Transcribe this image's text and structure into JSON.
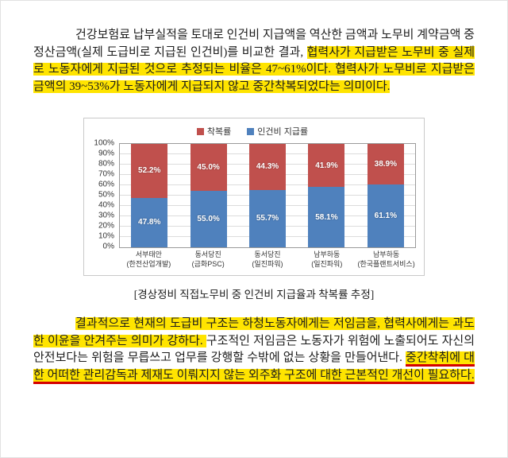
{
  "colors": {
    "highlight": "#ffe400",
    "underline": "#d40000"
  },
  "doc": {
    "paragraph1": [
      {
        "text": "건강보험료 납부실적을 토대로 인건비 지급액을 역산한 금액과 노무비 계약금액 중 정산금액(실제 도급비로 지급된 인건비)를 비교한 결과, ",
        "hl": false
      },
      {
        "text": "협력사가 지급받은 노무비 중 실제로 노동자에게 지급된 것으로 추정되는 비율은 47~61%이다. 협력사가 노무비로 지급받은 금액의 39~53%가 노동자에게 지급되지 않고 중간착복되었다는 의미이다.",
        "hl": true
      }
    ],
    "chart_caption": "[경상정비 직접노무비 중 인건비 지급율과 착복률 추정]",
    "paragraph2": [
      {
        "text": "결과적으로 현재의 도급비 구조는 하청노동자에게는 저임금을, 협력사에게는 과도한 이윤을 안겨주는 의미가 강하다. ",
        "hl": true
      },
      {
        "text": "구조적인 저임금은 노동자가 위험에 노출되어도 자신의 안전보다는 위험을 무릅쓰고 업무를 강행할 수밖에 없는 상황을 만들어낸다. ",
        "hl": false
      },
      {
        "text": "중간착취에 대한 어떠한 관리감독과 제재도 이뤄지지 않는 외주화 구조에 대한 근본적인 개선이 필요하다.",
        "hl": true,
        "underline": true
      }
    ]
  },
  "chart_data": {
    "type": "bar",
    "subtype": "stacked-100",
    "title": "",
    "categories": [
      [
        "서부태안",
        "(한전산업개발)"
      ],
      [
        "동서당진",
        "(금화PSC)"
      ],
      [
        "동서당진",
        "(일진파워)"
      ],
      [
        "남부하동",
        "(일진파워)"
      ],
      [
        "남부하동",
        "(한국플랜트서비스)"
      ]
    ],
    "series": [
      {
        "name": "인건비 지급률",
        "color": "#4F81BD",
        "values": [
          47.8,
          55.0,
          55.7,
          58.1,
          61.1
        ]
      },
      {
        "name": "착복률",
        "color": "#C0504D",
        "values": [
          52.2,
          45.0,
          44.3,
          41.9,
          38.9
        ]
      }
    ],
    "legend": [
      {
        "label": "착복률",
        "color": "#C0504D"
      },
      {
        "label": "인건비 지급률",
        "color": "#4F81BD"
      }
    ],
    "legend_position": "top",
    "grid": true,
    "ylim": [
      0,
      100
    ],
    "ytick_step": 10,
    "ytick_suffix": "%",
    "value_label_suffix": "%"
  }
}
